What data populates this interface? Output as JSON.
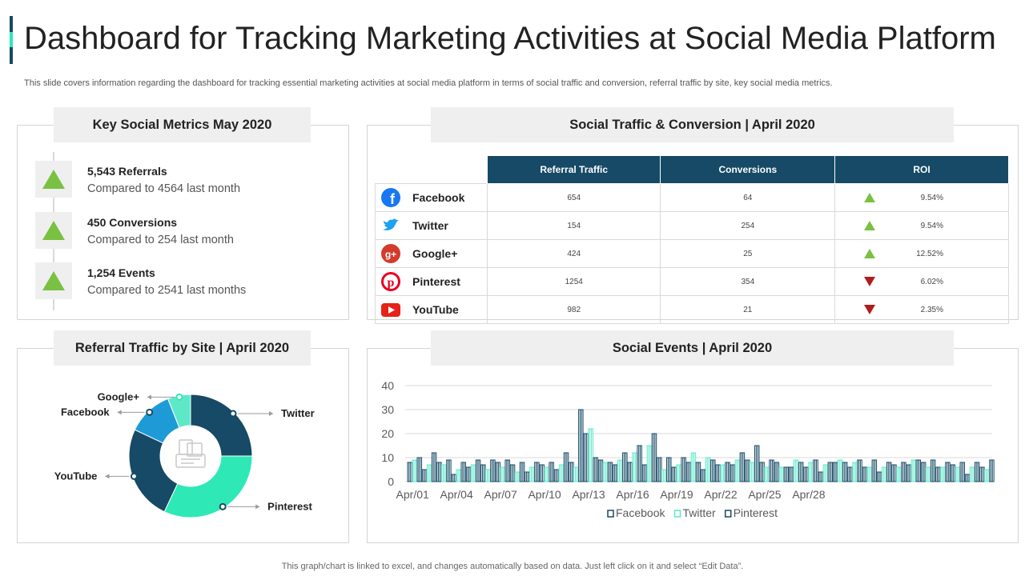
{
  "header": {
    "title": "Dashboard for Tracking Marketing Activities at Social Media Platform",
    "subtitle": "This slide covers information regarding the dashboard for tracking essential marketing activities at social media platform in terms of social traffic and conversion, referral traffic by site, key social media metrics."
  },
  "key_metrics": {
    "title": "Key Social Metrics May 2020",
    "items": [
      {
        "value": "5,543 Referrals",
        "compare": "Compared to 4564 last month"
      },
      {
        "value": "450 Conversions",
        "compare": "Compared to 254 last month"
      },
      {
        "value": "1,254 Events",
        "compare": "Compared to 2541 last months"
      }
    ]
  },
  "traffic_table": {
    "title": "Social Traffic & Conversion | April 2020",
    "headers": [
      "Referral Traffic",
      "Conversions",
      "ROI"
    ],
    "rows": [
      {
        "platform": "Facebook",
        "icon": "facebook-icon",
        "referral": "654",
        "conversions": "64",
        "trend": "up",
        "roi": "9.54%"
      },
      {
        "platform": "Twitter",
        "icon": "twitter-icon",
        "referral": "154",
        "conversions": "254",
        "trend": "up",
        "roi": "9.54%"
      },
      {
        "platform": "Google+",
        "icon": "google-plus-icon",
        "referral": "424",
        "conversions": "25",
        "trend": "up",
        "roi": "12.52%"
      },
      {
        "platform": "Pinterest",
        "icon": "pinterest-icon",
        "referral": "1254",
        "conversions": "354",
        "trend": "down",
        "roi": "6.02%"
      },
      {
        "platform": "YouTube",
        "icon": "youtube-icon",
        "referral": "982",
        "conversions": "21",
        "trend": "down",
        "roi": "2.35%"
      }
    ]
  },
  "referral_panel": {
    "title": "Referral Traffic by Site | April  2020"
  },
  "events_panel": {
    "title": "Social Events | April 2020"
  },
  "colors": {
    "navy": "#164a66",
    "teal": "#2ee8b6",
    "blue": "#1e9bd7",
    "mint": "#5ee8c8",
    "up": "#7ac142",
    "down": "#b01c1c"
  },
  "footer": "This graph/chart is linked to excel,  and changes automatically based on data. Just left click on it and select “Edit Data”.",
  "chart_data": [
    {
      "type": "pie",
      "title": "Referral Traffic by Site | April  2020",
      "categories": [
        "Twitter",
        "Pinterest",
        "YouTube",
        "Facebook",
        "Google+"
      ],
      "values": [
        25,
        32,
        25,
        12,
        6
      ],
      "colors": [
        "#164a66",
        "#2ee8b6",
        "#164a66",
        "#1e9bd7",
        "#5ee8c8"
      ]
    },
    {
      "type": "bar",
      "title": "Social Events | April 2020",
      "x_tick_labels": [
        "Apr/01",
        "Apr/04",
        "Apr/07",
        "Apr/10",
        "Apr/13",
        "Apr/16",
        "Apr/19",
        "Apr/22",
        "Apr/25",
        "Apr/28"
      ],
      "ylim": [
        0,
        40
      ],
      "yticks": [
        0,
        10,
        20,
        30,
        40
      ],
      "series": [
        {
          "name": "Facebook",
          "values": [
            8,
            5,
            8,
            3,
            6,
            7,
            8,
            7,
            4,
            7,
            5,
            8,
            20,
            9,
            7,
            8,
            7,
            10,
            6,
            8,
            5,
            7,
            7,
            9,
            8,
            8,
            6,
            6,
            4,
            8,
            6,
            6,
            4,
            7,
            7,
            8,
            6,
            7,
            3,
            6
          ]
        },
        {
          "name": "Twitter",
          "values": [
            9,
            7,
            7,
            5,
            7,
            5,
            6,
            4,
            6,
            6,
            7,
            6,
            22,
            8,
            9,
            12,
            15,
            5,
            7,
            12,
            10,
            7,
            9,
            8,
            6,
            6,
            9,
            8,
            7,
            9,
            8,
            6,
            6,
            6,
            9,
            6,
            6,
            6,
            6,
            5
          ]
        },
        {
          "name": "Pinterest",
          "values": [
            10,
            12,
            9,
            8,
            9,
            9,
            9,
            8,
            8,
            8,
            12,
            30,
            10,
            8,
            12,
            15,
            20,
            10,
            10,
            8,
            9,
            8,
            12,
            15,
            9,
            6,
            8,
            9,
            8,
            8,
            9,
            9,
            8,
            8,
            9,
            9,
            8,
            8,
            8,
            9
          ]
        }
      ],
      "series_colors": [
        "#164a66",
        "#2ee8b6",
        "#164a66"
      ]
    }
  ]
}
